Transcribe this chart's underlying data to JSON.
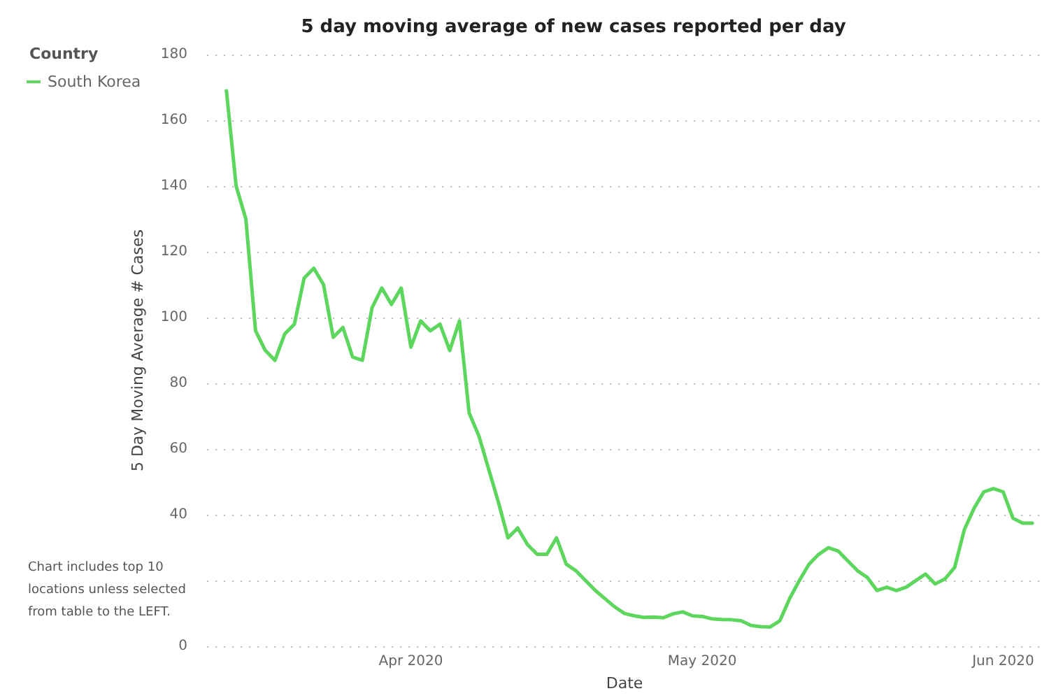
{
  "chart_data": {
    "type": "line",
    "title": "5 day moving average of new cases reported per day",
    "xlabel": "Date",
    "ylabel": "5 Day Moving Average # Cases",
    "legend_title": "Country",
    "legend": "top left",
    "grid": "y",
    "marker": "none",
    "line_style": "solid",
    "annotations": [
      "Chart includes top 10 locations unless selected from table to the LEFT."
    ],
    "xlim": [
      "2020-03-11",
      "2020-06-05"
    ],
    "xticks": [
      {
        "value": "2020-04-01",
        "label": "Apr 2020"
      },
      {
        "value": "2020-05-01",
        "label": "May 2020"
      },
      {
        "value": "2020-06-01",
        "label": "Jun 2020"
      }
    ],
    "ylim": [
      0,
      180
    ],
    "yticks": [
      0,
      {
        "value": 20,
        "label": null
      },
      40,
      60,
      80,
      100,
      120,
      140,
      160,
      180
    ],
    "x": [
      "2020-03-13",
      "2020-03-14",
      "2020-03-15",
      "2020-03-16",
      "2020-03-17",
      "2020-03-18",
      "2020-03-19",
      "2020-03-20",
      "2020-03-21",
      "2020-03-22",
      "2020-03-23",
      "2020-03-24",
      "2020-03-25",
      "2020-03-26",
      "2020-03-27",
      "2020-03-28",
      "2020-03-29",
      "2020-03-30",
      "2020-03-31",
      "2020-04-01",
      "2020-04-02",
      "2020-04-03",
      "2020-04-04",
      "2020-04-05",
      "2020-04-06",
      "2020-04-07",
      "2020-04-08",
      "2020-04-09",
      "2020-04-10",
      "2020-04-11",
      "2020-04-12",
      "2020-04-13",
      "2020-04-14",
      "2020-04-15",
      "2020-04-16",
      "2020-04-17",
      "2020-04-18",
      "2020-04-19",
      "2020-04-20",
      "2020-04-21",
      "2020-04-22",
      "2020-04-23",
      "2020-04-24",
      "2020-04-25",
      "2020-04-26",
      "2020-04-27",
      "2020-04-28",
      "2020-04-29",
      "2020-04-30",
      "2020-05-01",
      "2020-05-02",
      "2020-05-03",
      "2020-05-04",
      "2020-05-05",
      "2020-05-06",
      "2020-05-07",
      "2020-05-08",
      "2020-05-09",
      "2020-05-10",
      "2020-05-11",
      "2020-05-12",
      "2020-05-13",
      "2020-05-14",
      "2020-05-15",
      "2020-05-16",
      "2020-05-17",
      "2020-05-18",
      "2020-05-19",
      "2020-05-20",
      "2020-05-21",
      "2020-05-22",
      "2020-05-23",
      "2020-05-24",
      "2020-05-25",
      "2020-05-26",
      "2020-05-27",
      "2020-05-28",
      "2020-05-29",
      "2020-05-30",
      "2020-05-31",
      "2020-06-01",
      "2020-06-02",
      "2020-06-03",
      "2020-06-04"
    ],
    "series": [
      {
        "name": "South Korea",
        "color": "#5cd65c",
        "values": [
          169,
          140,
          130,
          96,
          90,
          87,
          95,
          98,
          112,
          115,
          110,
          94,
          97,
          88,
          87,
          103,
          109,
          104,
          109,
          91,
          99,
          96,
          98,
          90,
          99,
          71,
          64,
          54,
          44,
          33,
          36,
          31,
          28,
          28,
          33,
          25,
          23,
          20,
          17,
          14.5,
          12,
          10,
          9.3,
          8.8,
          8.9,
          8.7,
          9.9,
          10.5,
          9.3,
          9.1,
          8.4,
          8.2,
          8.1,
          7.8,
          6.4,
          6,
          5.9,
          7.8,
          14.5,
          20,
          25,
          28,
          30,
          29,
          26,
          23,
          21,
          17,
          18,
          17,
          18,
          20,
          22,
          19,
          20.5,
          24,
          35.5,
          42,
          47,
          48,
          47,
          39,
          37.5,
          37.5
        ]
      }
    ]
  }
}
